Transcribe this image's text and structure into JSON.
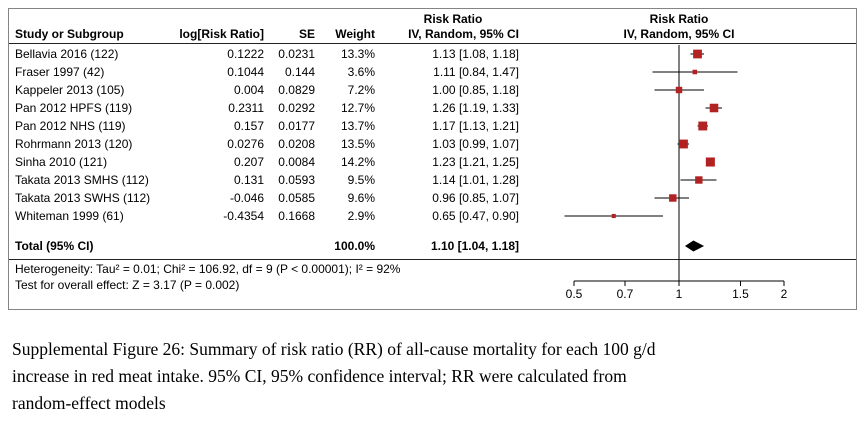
{
  "header": {
    "study": "Study or Subgroup",
    "log_rr": "log[Risk Ratio]",
    "se": "SE",
    "weight": "Weight",
    "effect_title": "Risk Ratio",
    "ci_method": "IV, Random, 95% CI",
    "plot_title": "Risk Ratio",
    "plot_subtitle": "IV, Random, 95% CI"
  },
  "footnotes": {
    "heterogeneity": "Heterogeneity: Tau² = 0.01; Chi² = 106.92, df = 9 (P < 0.00001); I² = 92%",
    "overall_effect": "Test for overall effect: Z = 3.17 (P = 0.002)"
  },
  "chart_data": {
    "type": "forest",
    "scale": "log",
    "effect_measure": "Risk Ratio",
    "model": "IV, Random, 95% CI",
    "axis_ticks": [
      0.5,
      0.7,
      1,
      1.5,
      2
    ],
    "xlim": [
      0.5,
      2
    ],
    "studies": [
      {
        "name": "Bellavia 2016 (122)",
        "log_rr": "0.1222",
        "se": "0.0231",
        "weight": "13.3%",
        "weight_value": 13.3,
        "rr": 1.13,
        "ci_low": 1.08,
        "ci_high": 1.18,
        "ci_text": "1.13 [1.08, 1.18]"
      },
      {
        "name": "Fraser 1997 (42)",
        "log_rr": "0.1044",
        "se": "0.144",
        "weight": "3.6%",
        "weight_value": 3.6,
        "rr": 1.11,
        "ci_low": 0.84,
        "ci_high": 1.47,
        "ci_text": "1.11 [0.84, 1.47]"
      },
      {
        "name": "Kappeler 2013 (105)",
        "log_rr": "0.004",
        "se": "0.0829",
        "weight": "7.2%",
        "weight_value": 7.2,
        "rr": 1.0,
        "ci_low": 0.85,
        "ci_high": 1.18,
        "ci_text": "1.00 [0.85, 1.18]"
      },
      {
        "name": "Pan 2012 HPFS (119)",
        "log_rr": "0.2311",
        "se": "0.0292",
        "weight": "12.7%",
        "weight_value": 12.7,
        "rr": 1.26,
        "ci_low": 1.19,
        "ci_high": 1.33,
        "ci_text": "1.26 [1.19, 1.33]"
      },
      {
        "name": "Pan 2012 NHS (119)",
        "log_rr": "0.157",
        "se": "0.0177",
        "weight": "13.7%",
        "weight_value": 13.7,
        "rr": 1.17,
        "ci_low": 1.13,
        "ci_high": 1.21,
        "ci_text": "1.17 [1.13, 1.21]"
      },
      {
        "name": "Rohrmann 2013 (120)",
        "log_rr": "0.0276",
        "se": "0.0208",
        "weight": "13.5%",
        "weight_value": 13.5,
        "rr": 1.03,
        "ci_low": 0.99,
        "ci_high": 1.07,
        "ci_text": "1.03 [0.99, 1.07]"
      },
      {
        "name": "Sinha 2010 (121)",
        "log_rr": "0.207",
        "se": "0.0084",
        "weight": "14.2%",
        "weight_value": 14.2,
        "rr": 1.23,
        "ci_low": 1.21,
        "ci_high": 1.25,
        "ci_text": "1.23 [1.21, 1.25]"
      },
      {
        "name": "Takata 2013 SMHS (112)",
        "log_rr": "0.131",
        "se": "0.0593",
        "weight": "9.5%",
        "weight_value": 9.5,
        "rr": 1.14,
        "ci_low": 1.01,
        "ci_high": 1.28,
        "ci_text": "1.14 [1.01, 1.28]"
      },
      {
        "name": "Takata 2013 SWHS (112)",
        "log_rr": "-0.046",
        "se": "0.0585",
        "weight": "9.6%",
        "weight_value": 9.6,
        "rr": 0.96,
        "ci_low": 0.85,
        "ci_high": 1.07,
        "ci_text": "0.96 [0.85, 1.07]"
      },
      {
        "name": "Whiteman 1999 (61)",
        "log_rr": "-0.4354",
        "se": "0.1668",
        "weight": "2.9%",
        "weight_value": 2.9,
        "rr": 0.65,
        "ci_low": 0.47,
        "ci_high": 0.9,
        "ci_text": "0.65 [0.47, 0.90]"
      }
    ],
    "total": {
      "label": "Total (95% CI)",
      "weight": "100.0%",
      "estimate": 1.1,
      "ci_low": 1.04,
      "ci_high": 1.18,
      "ci_text": "1.10 [1.04, 1.18]"
    }
  },
  "colors": {
    "marker": "#b22222",
    "ci_line": "#000000",
    "diamond": "#000000",
    "reference_line": "#000000",
    "axis": "#000000"
  },
  "caption_lines": [
    "Supplemental Figure 26: Summary of risk ratio (RR) of all-cause mortality for each 100 g/d",
    "increase in red meat intake. 95% CI, 95% confidence interval; RR were calculated from",
    "random-effect models"
  ]
}
